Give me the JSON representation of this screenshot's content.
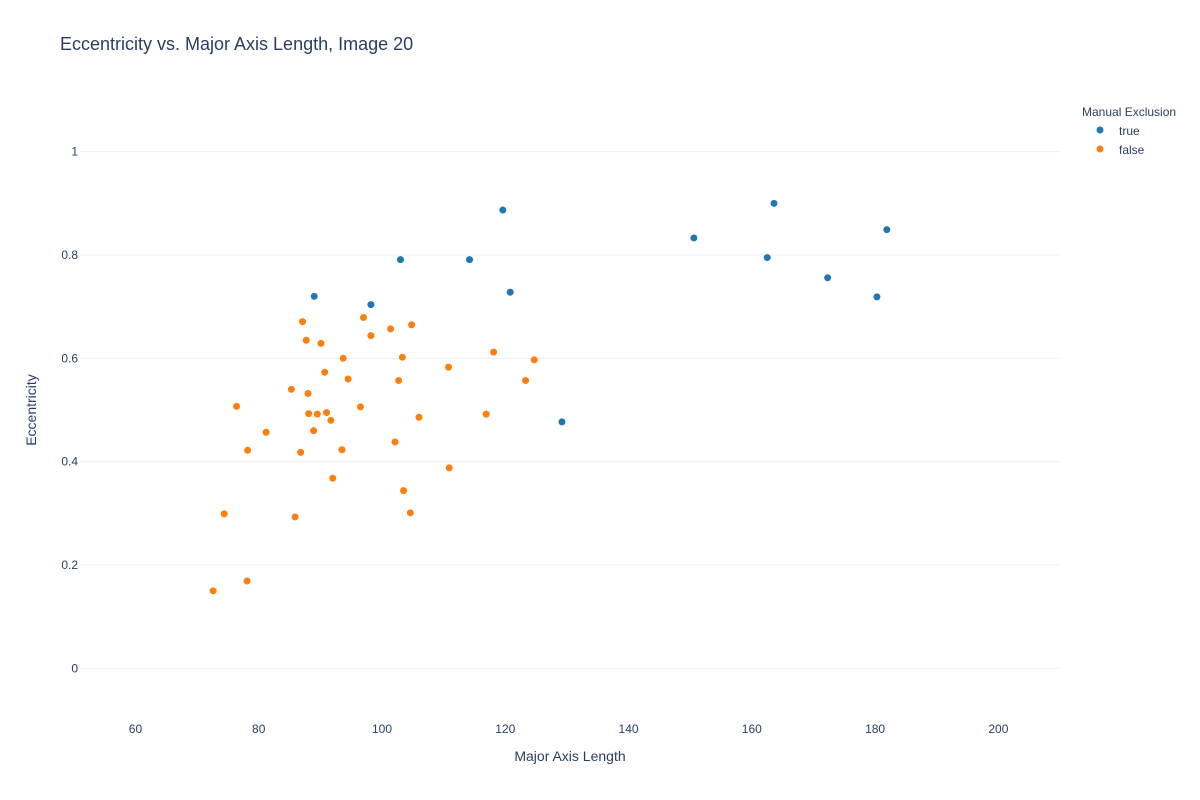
{
  "chart_data": {
    "type": "scatter",
    "title": "Eccentricity vs. Major Axis Length, Image 20",
    "xlabel": "Major Axis Length",
    "ylabel": "Eccentricity",
    "xlim": [
      51,
      210
    ],
    "ylim": [
      -0.1,
      1.1
    ],
    "x_ticks": [
      60,
      80,
      100,
      120,
      140,
      160,
      180,
      200
    ],
    "y_ticks": [
      0,
      0.2,
      0.4,
      0.6,
      0.8,
      1
    ],
    "grid": "horizontal",
    "legend": {
      "title": "Manual Exclusion",
      "position": "top-right outside"
    },
    "series": [
      {
        "name": "true",
        "color": "#1f77b4",
        "points": [
          {
            "x": 89.0,
            "y": 0.72
          },
          {
            "x": 98.2,
            "y": 0.704
          },
          {
            "x": 103.0,
            "y": 0.791
          },
          {
            "x": 114.2,
            "y": 0.791
          },
          {
            "x": 119.6,
            "y": 0.887
          },
          {
            "x": 120.8,
            "y": 0.728
          },
          {
            "x": 129.2,
            "y": 0.477
          },
          {
            "x": 150.6,
            "y": 0.833
          },
          {
            "x": 162.5,
            "y": 0.795
          },
          {
            "x": 163.6,
            "y": 0.9
          },
          {
            "x": 172.3,
            "y": 0.756
          },
          {
            "x": 180.3,
            "y": 0.719
          },
          {
            "x": 181.9,
            "y": 0.849
          }
        ]
      },
      {
        "name": "false",
        "color": "#ff7f0e",
        "points": [
          {
            "x": 72.6,
            "y": 0.15
          },
          {
            "x": 74.4,
            "y": 0.299
          },
          {
            "x": 76.4,
            "y": 0.507
          },
          {
            "x": 78.1,
            "y": 0.169
          },
          {
            "x": 78.2,
            "y": 0.422
          },
          {
            "x": 81.2,
            "y": 0.457
          },
          {
            "x": 85.3,
            "y": 0.54
          },
          {
            "x": 85.9,
            "y": 0.293
          },
          {
            "x": 86.8,
            "y": 0.418
          },
          {
            "x": 87.1,
            "y": 0.671
          },
          {
            "x": 87.7,
            "y": 0.635
          },
          {
            "x": 88.0,
            "y": 0.532
          },
          {
            "x": 88.1,
            "y": 0.493
          },
          {
            "x": 88.9,
            "y": 0.46
          },
          {
            "x": 89.5,
            "y": 0.492
          },
          {
            "x": 90.1,
            "y": 0.629
          },
          {
            "x": 90.7,
            "y": 0.573
          },
          {
            "x": 91.0,
            "y": 0.495
          },
          {
            "x": 91.7,
            "y": 0.48
          },
          {
            "x": 92.0,
            "y": 0.368
          },
          {
            "x": 93.5,
            "y": 0.423
          },
          {
            "x": 93.7,
            "y": 0.6
          },
          {
            "x": 94.5,
            "y": 0.56
          },
          {
            "x": 96.5,
            "y": 0.506
          },
          {
            "x": 97.0,
            "y": 0.679
          },
          {
            "x": 98.2,
            "y": 0.644
          },
          {
            "x": 101.4,
            "y": 0.657
          },
          {
            "x": 102.1,
            "y": 0.438
          },
          {
            "x": 102.7,
            "y": 0.557
          },
          {
            "x": 103.3,
            "y": 0.602
          },
          {
            "x": 103.5,
            "y": 0.344
          },
          {
            "x": 104.6,
            "y": 0.301
          },
          {
            "x": 104.8,
            "y": 0.665
          },
          {
            "x": 106.0,
            "y": 0.486
          },
          {
            "x": 110.8,
            "y": 0.583
          },
          {
            "x": 110.9,
            "y": 0.388
          },
          {
            "x": 116.9,
            "y": 0.492
          },
          {
            "x": 118.1,
            "y": 0.612
          },
          {
            "x": 123.3,
            "y": 0.557
          },
          {
            "x": 124.7,
            "y": 0.597
          }
        ]
      }
    ]
  }
}
